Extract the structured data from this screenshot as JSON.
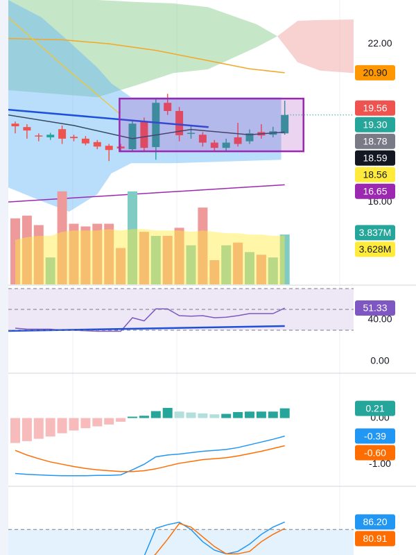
{
  "chart_data": [
    {
      "type": "candlestick",
      "x": [
        0,
        1,
        2,
        3,
        4,
        5,
        6,
        7,
        8,
        9,
        10,
        11,
        12,
        13,
        14,
        15,
        16,
        17,
        18,
        19,
        20,
        21,
        22,
        23
      ],
      "open": [
        18.97,
        18.84,
        18.52,
        18.45,
        18.76,
        18.47,
        18.4,
        18.27,
        18.13,
        18.1,
        18.0,
        19.05,
        18.08,
        19.76,
        19.45,
        18.6,
        18.55,
        18.25,
        18.05,
        18.45,
        18.3,
        18.65,
        18.55,
        18.6
      ],
      "high": [
        19.05,
        18.95,
        18.6,
        18.62,
        18.9,
        18.55,
        18.5,
        18.35,
        18.2,
        18.2,
        19.1,
        19.2,
        19.9,
        20.1,
        19.6,
        18.9,
        18.65,
        18.35,
        18.4,
        19.0,
        18.75,
        18.95,
        18.85,
        19.84
      ],
      "low": [
        18.6,
        18.4,
        18.3,
        18.35,
        18.2,
        18.3,
        18.15,
        18.0,
        17.55,
        17.9,
        17.9,
        17.95,
        17.6,
        19.3,
        18.3,
        18.4,
        18.1,
        17.95,
        17.95,
        18.1,
        18.2,
        18.4,
        18.45,
        18.55
      ],
      "close": [
        18.87,
        18.71,
        18.48,
        18.55,
        18.4,
        18.42,
        18.22,
        18.1,
        17.97,
        18.03,
        18.97,
        18.05,
        19.76,
        19.45,
        18.53,
        18.62,
        18.25,
        18.05,
        18.25,
        18.2,
        18.6,
        18.52,
        18.68,
        19.3
      ],
      "up_color": "#26a69a",
      "down_color": "#ef5350",
      "ylim": [
        12.87,
        23.66
      ],
      "yticks": [
        {
          "value": 22,
          "label": "22.00"
        },
        {
          "value": 16,
          "label": "16.00"
        }
      ],
      "areas": [
        {
          "color": "#81c784",
          "x": [
            -0.6,
            7,
            10.5,
            13.5,
            16.45,
            20.6,
            22.37
          ],
          "upper": [
            23.66,
            23.66,
            23.58,
            23.53,
            23.39,
            22.74,
            22.29
          ],
          "lower": [
            20.24,
            19.97,
            20.45,
            20.89,
            21.03,
            21.87,
            22.29
          ]
        },
        {
          "color": "#ef9a9a",
          "x": [
            22.37,
            24.1,
            26,
            28.9
          ],
          "upper": [
            22.29,
            22.87,
            22.9,
            22.92
          ],
          "lower": [
            22.29,
            21.3,
            20.98,
            20.89
          ]
        },
        {
          "color": "#64b5f6",
          "x": [
            -0.6,
            2.25,
            4.6,
            7,
            8.2,
            9.9,
            13.5,
            22.7
          ],
          "upper": [
            23.66,
            23.0,
            22.08,
            21.1,
            20.5,
            19.97,
            19.97,
            19.97
          ],
          "lower": [
            16.55,
            16.03,
            15.63,
            16.29,
            17.08,
            17.47,
            17.47,
            17.6
          ]
        }
      ],
      "series": [
        {
          "color": "#f5a623",
          "x": [
            -0.6,
            4,
            8,
            12,
            16,
            20,
            23
          ],
          "values": [
            22.2,
            22.15,
            22.0,
            21.75,
            21.4,
            21.05,
            20.9
          ]
        },
        {
          "color": "#e6c84a",
          "x": [
            -0.6,
            4,
            8.9
          ],
          "values": [
            23.0,
            21.2,
            19.35
          ]
        },
        {
          "color": "#9c27b0",
          "x": [
            -0.6,
            23
          ],
          "values": [
            16.0,
            16.65
          ]
        },
        {
          "color": "#34495e",
          "x": [
            -0.6,
            5,
            10,
            15,
            20,
            23
          ],
          "values": [
            19.3,
            18.9,
            18.4,
            18.75,
            18.55,
            18.65
          ]
        },
        {
          "color": "#1e4fd8",
          "x": [
            -0.6,
            16.5
          ],
          "values": [
            19.5,
            18.84
          ]
        }
      ],
      "box": {
        "x": [
          8.9,
          24.6
        ],
        "y": [
          17.92,
          19.92
        ],
        "color": "#9c27b0"
      },
      "tags": [
        {
          "value": 20.9,
          "label": "20.90",
          "color": "#ff9800"
        },
        {
          "value": 19.56,
          "label": "19.56",
          "color": "#ef5350"
        },
        {
          "value": 19.3,
          "label": "19.30",
          "color": "#26a69a",
          "line": true
        },
        {
          "value": 18.78,
          "label": "18.78",
          "color": "#787b86"
        },
        {
          "value": 18.59,
          "label": "18.59",
          "color": "#131722"
        },
        {
          "value": 18.56,
          "label": "18.56",
          "color": "#ffeb3b"
        },
        {
          "value": 16.65,
          "label": "16.65",
          "color": "#9c27b0"
        }
      ]
    },
    {
      "type": "bar",
      "x": [
        0,
        1,
        2,
        3,
        4,
        5,
        6,
        7,
        8,
        9,
        10,
        11,
        12,
        13,
        14,
        15,
        16,
        17,
        18,
        19,
        20,
        21,
        22,
        23
      ],
      "values": [
        4.9,
        5.1,
        4.4,
        2.0,
        6.9,
        4.5,
        4.3,
        4.5,
        4.5,
        2.7,
        6.9,
        3.9,
        3.6,
        3.6,
        4.2,
        2.9,
        5.7,
        1.8,
        2.9,
        3.1,
        2.4,
        2.2,
        2.0,
        3.7
      ],
      "colors": [
        "#ef9a9a",
        "#ef9a9a",
        "#ef9a9a",
        "#80cbc4",
        "#ef9a9a",
        "#ef9a9a",
        "#ef9a9a",
        "#ef9a9a",
        "#ef9a9a",
        "#ef9a9a",
        "#80cbc4",
        "#ef9a9a",
        "#80cbc4",
        "#ef9a9a",
        "#ef9a9a",
        "#80cbc4",
        "#ef9a9a",
        "#ef9a9a",
        "#80cbc4",
        "#ef9a9a",
        "#80cbc4",
        "#ef9a9a",
        "#80cbc4",
        "#80cbc4"
      ],
      "ylim": [
        0,
        7.2
      ],
      "series": [
        {
          "color": "#ffeb3b",
          "fill": true,
          "values": [
            3.3,
            3.5,
            3.6,
            3.6,
            3.9,
            4.0,
            4.0,
            4.0,
            4.1,
            4.0,
            4.1,
            4.1,
            4.0,
            4.0,
            4.0,
            3.9,
            4.0,
            3.9,
            3.8,
            3.8,
            3.7,
            3.7,
            3.6,
            3.628
          ]
        }
      ],
      "tags": [
        {
          "value": 3.837,
          "label": "3.837M",
          "color": "#26a69a"
        },
        {
          "value": 3.628,
          "label": "3.628M",
          "color": "#ffeb3b"
        }
      ]
    },
    {
      "type": "line",
      "x": [
        0,
        1,
        2,
        3,
        4,
        5,
        6,
        7,
        8,
        9,
        10,
        11,
        12,
        13,
        14,
        15,
        16,
        17,
        18,
        19,
        20,
        21,
        22,
        23
      ],
      "ylim": [
        -10.7,
        72.7
      ],
      "yticks": [
        {
          "value": 40,
          "label": "40.00"
        },
        {
          "value": 0,
          "label": "0.00"
        }
      ],
      "levels": [
        70,
        50,
        30
      ],
      "band": {
        "range": [
          30,
          70
        ],
        "color": "#ede7f6"
      },
      "series": [
        {
          "color": "#7e57c2",
          "values": [
            32,
            31,
            31,
            31,
            30,
            30,
            29.5,
            29,
            29,
            29,
            42,
            39,
            50.5,
            50.5,
            44,
            43.5,
            44,
            42,
            42.5,
            44,
            46,
            46,
            46,
            51.33
          ]
        },
        {
          "color": "#1e4fd8",
          "x": [
            -0.6,
            23
          ],
          "values": [
            29.3,
            34
          ]
        }
      ],
      "tags": [
        {
          "value": 51.33,
          "label": "51.33",
          "color": "#7e57c2"
        }
      ]
    },
    {
      "type": "line",
      "x": [
        0,
        1,
        2,
        3,
        4,
        5,
        6,
        7,
        8,
        9,
        10,
        11,
        12,
        13,
        14,
        15,
        16,
        17,
        18,
        19,
        20,
        21,
        22,
        23
      ],
      "ylim": [
        -1.463,
        0.955
      ],
      "yticks": [
        {
          "value": 0,
          "label": "0.00"
        },
        {
          "value": -1,
          "label": "-1.00"
        }
      ],
      "histogram": {
        "values": [
          -0.54,
          -0.5,
          -0.45,
          -0.4,
          -0.33,
          -0.27,
          -0.22,
          -0.18,
          -0.14,
          -0.08,
          0.03,
          0.05,
          0.15,
          0.22,
          0.14,
          0.12,
          0.1,
          0.08,
          0.09,
          0.13,
          0.14,
          0.14,
          0.14,
          0.21
        ],
        "colors": [
          "#f8bbbb",
          "#f8bbbb",
          "#f8bbbb",
          "#f8bbbb",
          "#f8bbbb",
          "#f8bbbb",
          "#f8bbbb",
          "#f8bbbb",
          "#f8bbbb",
          "#f8bbbb",
          "#26a69a",
          "#26a69a",
          "#26a69a",
          "#26a69a",
          "#b2dfdb",
          "#b2dfdb",
          "#b2dfdb",
          "#b2dfdb",
          "#26a69a",
          "#26a69a",
          "#26a69a",
          "#26a69a",
          "#26a69a",
          "#26a69a"
        ]
      },
      "series": [
        {
          "color": "#2196f3",
          "values": [
            -1.2,
            -1.22,
            -1.23,
            -1.24,
            -1.25,
            -1.25,
            -1.25,
            -1.24,
            -1.24,
            -1.23,
            -1.12,
            -1.0,
            -0.84,
            -0.8,
            -0.78,
            -0.75,
            -0.72,
            -0.7,
            -0.68,
            -0.64,
            -0.58,
            -0.52,
            -0.46,
            -0.39
          ]
        },
        {
          "color": "#ff6d00",
          "values": [
            -0.7,
            -0.8,
            -0.88,
            -0.95,
            -1.0,
            -1.05,
            -1.09,
            -1.12,
            -1.14,
            -1.16,
            -1.16,
            -1.14,
            -1.1,
            -1.04,
            -0.98,
            -0.94,
            -0.9,
            -0.88,
            -0.86,
            -0.82,
            -0.77,
            -0.72,
            -0.66,
            -0.6
          ]
        }
      ],
      "tags": [
        {
          "value": 0.21,
          "label": "0.21",
          "color": "#26a69a"
        },
        {
          "value": -0.39,
          "label": "-0.39",
          "color": "#2196f3"
        },
        {
          "value": -0.6,
          "label": "-0.60",
          "color": "#ff6d00"
        }
      ]
    },
    {
      "type": "line",
      "x": [
        11,
        12,
        13,
        14,
        15,
        16,
        17,
        18,
        19,
        20,
        21,
        22,
        23
      ],
      "ylim": [
        59,
        115
      ],
      "levels": [
        80
      ],
      "band": {
        "range": [
          59,
          80
        ],
        "color": "#e3f2fd"
      },
      "series": [
        {
          "color": "#2196f3",
          "values": [
            58,
            81,
            84,
            86,
            80,
            70,
            63,
            60,
            62,
            68,
            76,
            82,
            86.2
          ]
        },
        {
          "color": "#ff6d00",
          "values": [
            50,
            60,
            72,
            85,
            82,
            74,
            66,
            60,
            60,
            62,
            70,
            76,
            80.91
          ]
        }
      ],
      "tags": [
        {
          "value": 86.2,
          "label": "86.20",
          "color": "#2196f3"
        },
        {
          "value": 80.91,
          "label": "80.91",
          "color": "#ff6d00"
        }
      ]
    }
  ]
}
